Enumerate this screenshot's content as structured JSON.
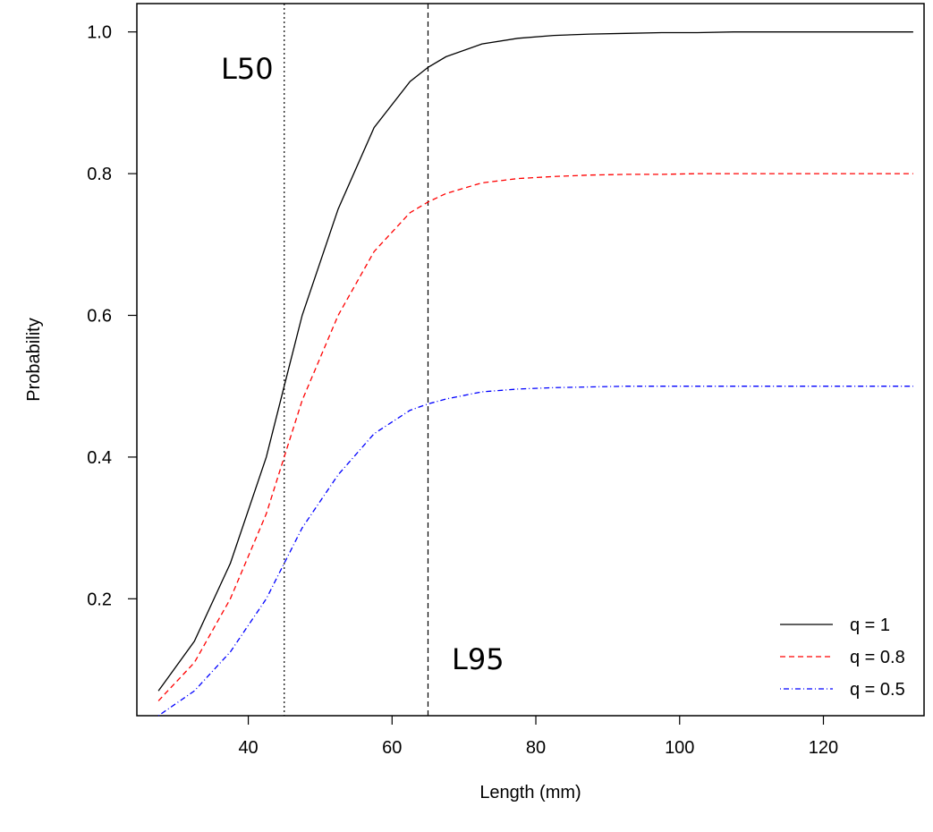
{
  "chart_data": {
    "type": "line",
    "xlabel": "Length (mm)",
    "ylabel": "Probability",
    "xlim": [
      24.5,
      134
    ],
    "ylim": [
      0.035,
      1.04
    ],
    "xticks": [
      40,
      60,
      80,
      100,
      120
    ],
    "yticks": [
      0.2,
      0.4,
      0.6,
      0.8,
      1.0
    ],
    "ytick_labels": [
      "0.2",
      "0.4",
      "0.6",
      "0.8",
      "1.0"
    ],
    "grid": false,
    "legend_position": "bottom-right",
    "x": [
      27.5,
      32.5,
      37.5,
      42.5,
      45,
      47.5,
      52.5,
      57.5,
      62.5,
      65,
      67.5,
      72.5,
      77.5,
      82.5,
      87.5,
      92.5,
      97.5,
      102.5,
      107.5,
      112.5,
      117.5,
      122.5,
      127.5,
      132.5
    ],
    "series": [
      {
        "name": "q = 1",
        "color": "#000000",
        "dash": "solid",
        "values": [
          0.07,
          0.14,
          0.25,
          0.4,
          0.5,
          0.6,
          0.75,
          0.865,
          0.93,
          0.95,
          0.965,
          0.983,
          0.991,
          0.995,
          0.997,
          0.998,
          0.999,
          0.999,
          1.0,
          1.0,
          1.0,
          1.0,
          1.0,
          1.0
        ]
      },
      {
        "name": "q = 0.8",
        "color": "#ff0000",
        "dash": "dashed",
        "values": [
          0.056,
          0.11,
          0.2,
          0.32,
          0.4,
          0.48,
          0.6,
          0.69,
          0.745,
          0.76,
          0.772,
          0.787,
          0.793,
          0.796,
          0.798,
          0.799,
          0.799,
          0.8,
          0.8,
          0.8,
          0.8,
          0.8,
          0.8,
          0.8
        ]
      },
      {
        "name": "q = 0.5",
        "color": "#0000ff",
        "dash": "dotdash",
        "values": [
          0.035,
          0.07,
          0.125,
          0.2,
          0.25,
          0.3,
          0.375,
          0.433,
          0.466,
          0.475,
          0.482,
          0.492,
          0.496,
          0.498,
          0.499,
          0.5,
          0.5,
          0.5,
          0.5,
          0.5,
          0.5,
          0.5,
          0.5,
          0.5
        ]
      }
    ],
    "vlines": [
      {
        "x": 45,
        "dash": "dotted"
      },
      {
        "x": 65,
        "dash": "dashed"
      }
    ],
    "annotations": [
      {
        "text": "L50"
      },
      {
        "text": "L95"
      }
    ]
  }
}
